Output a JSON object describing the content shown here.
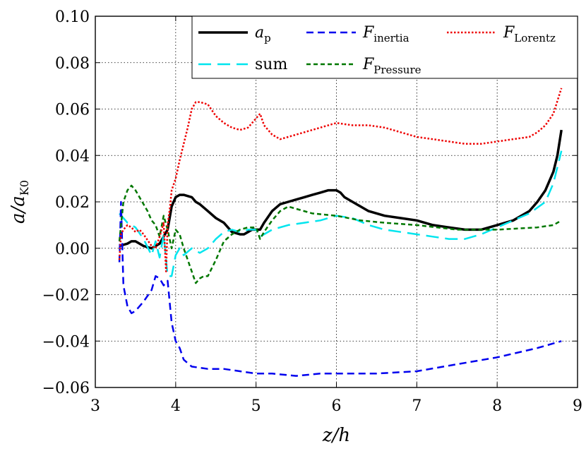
{
  "chart_data": {
    "type": "line",
    "title": "",
    "xlabel": "z/h",
    "ylabel": "a/a_K0",
    "xlim": [
      3,
      9
    ],
    "ylim": [
      -0.06,
      0.1
    ],
    "x_ticks": [
      "3",
      "4",
      "5",
      "6",
      "7",
      "8",
      "9"
    ],
    "y_ticks": [
      "0.10",
      "0.08",
      "0.06",
      "0.04",
      "0.02",
      "0.00",
      "−0.02",
      "−0.04",
      "−0.06"
    ],
    "grid": true,
    "legend_position": "top-right",
    "legend": [
      {
        "label": "a_p",
        "base": "a",
        "sub": "p",
        "sub_italic": true,
        "color": "#000000",
        "dash": "solid"
      },
      {
        "label": "F_inertia",
        "base": "F",
        "sub": "inertia",
        "sub_italic": false,
        "color": "#0000ee",
        "dash": "dashed"
      },
      {
        "label": "F_Lorentz",
        "base": "F",
        "sub": "Lorentz",
        "sub_italic": false,
        "color": "#ee0000",
        "dash": "dotted"
      },
      {
        "label": "sum",
        "base": "sum",
        "sub": "",
        "sub_italic": false,
        "color": "#00e5ee",
        "dash": "long-dashed"
      },
      {
        "label": "F_Pressure",
        "base": "F",
        "sub": "Pressure",
        "sub_italic": false,
        "color": "#007700",
        "dash": "short-dashed"
      }
    ],
    "series": [
      {
        "name": "a_p",
        "color": "#000000",
        "x": [
          3.3,
          3.4,
          3.45,
          3.5,
          3.6,
          3.7,
          3.8,
          3.9,
          3.95,
          4.0,
          4.05,
          4.1,
          4.2,
          4.25,
          4.3,
          4.4,
          4.5,
          4.6,
          4.7,
          4.8,
          4.85,
          4.9,
          4.95,
          5.0,
          5.05,
          5.1,
          5.2,
          5.3,
          5.4,
          5.5,
          5.6,
          5.7,
          5.8,
          5.9,
          6.0,
          6.05,
          6.1,
          6.2,
          6.4,
          6.6,
          6.8,
          7.0,
          7.2,
          7.4,
          7.6,
          7.8,
          8.0,
          8.2,
          8.4,
          8.5,
          8.6,
          8.7,
          8.75,
          8.8
        ],
        "y": [
          0.001,
          0.002,
          0.003,
          0.003,
          0.001,
          0.0,
          0.002,
          0.008,
          0.018,
          0.022,
          0.023,
          0.023,
          0.022,
          0.02,
          0.019,
          0.016,
          0.013,
          0.011,
          0.007,
          0.006,
          0.006,
          0.007,
          0.008,
          0.008,
          0.008,
          0.011,
          0.016,
          0.019,
          0.02,
          0.021,
          0.022,
          0.023,
          0.024,
          0.025,
          0.025,
          0.024,
          0.022,
          0.02,
          0.016,
          0.014,
          0.013,
          0.012,
          0.01,
          0.009,
          0.008,
          0.008,
          0.01,
          0.012,
          0.016,
          0.02,
          0.025,
          0.033,
          0.04,
          0.051
        ]
      },
      {
        "name": "sum",
        "color": "#00e5ee",
        "x": [
          3.3,
          3.35,
          3.4,
          3.5,
          3.6,
          3.7,
          3.75,
          3.8,
          3.85,
          3.9,
          3.95,
          4.0,
          4.05,
          4.1,
          4.2,
          4.3,
          4.4,
          4.5,
          4.6,
          4.7,
          4.8,
          4.9,
          5.0,
          5.05,
          5.1,
          5.2,
          5.4,
          5.6,
          5.8,
          6.0,
          6.2,
          6.4,
          6.6,
          6.8,
          7.0,
          7.2,
          7.4,
          7.6,
          7.8,
          8.0,
          8.2,
          8.4,
          8.6,
          8.7,
          8.8
        ],
        "y": [
          0.015,
          0.013,
          0.011,
          0.009,
          0.004,
          -0.003,
          0.003,
          -0.004,
          0.006,
          -0.012,
          -0.012,
          -0.003,
          0.0,
          -0.003,
          0.0,
          -0.002,
          0.0,
          0.004,
          0.007,
          0.008,
          0.007,
          0.008,
          0.008,
          0.005,
          0.006,
          0.008,
          0.01,
          0.011,
          0.012,
          0.014,
          0.013,
          0.01,
          0.008,
          0.007,
          0.006,
          0.005,
          0.004,
          0.004,
          0.006,
          0.009,
          0.012,
          0.015,
          0.02,
          0.028,
          0.042
        ]
      },
      {
        "name": "F_inertia",
        "color": "#0000ee",
        "x": [
          3.3,
          3.32,
          3.35,
          3.4,
          3.45,
          3.5,
          3.6,
          3.7,
          3.75,
          3.8,
          3.85,
          3.9,
          3.95,
          4.0,
          4.05,
          4.1,
          4.2,
          4.4,
          4.6,
          4.8,
          5.0,
          5.2,
          5.5,
          5.8,
          6.0,
          6.5,
          7.0,
          7.5,
          8.0,
          8.5,
          8.8
        ],
        "y": [
          -0.006,
          0.02,
          -0.016,
          -0.025,
          -0.028,
          -0.027,
          -0.023,
          -0.018,
          -0.012,
          -0.013,
          -0.016,
          -0.014,
          -0.032,
          -0.04,
          -0.043,
          -0.048,
          -0.051,
          -0.052,
          -0.052,
          -0.053,
          -0.054,
          -0.054,
          -0.055,
          -0.054,
          -0.054,
          -0.054,
          -0.053,
          -0.05,
          -0.047,
          -0.043,
          -0.04
        ]
      },
      {
        "name": "F_Pressure",
        "color": "#007700",
        "x": [
          3.3,
          3.35,
          3.4,
          3.45,
          3.5,
          3.6,
          3.65,
          3.7,
          3.75,
          3.8,
          3.85,
          3.9,
          3.95,
          4.0,
          4.05,
          4.1,
          4.15,
          4.2,
          4.25,
          4.3,
          4.35,
          4.4,
          4.5,
          4.6,
          4.7,
          4.8,
          4.9,
          5.0,
          5.05,
          5.1,
          5.2,
          5.3,
          5.4,
          5.5,
          5.7,
          6.0,
          6.3,
          6.6,
          7.0,
          7.5,
          8.0,
          8.5,
          8.7,
          8.8
        ],
        "y": [
          0.003,
          0.02,
          0.025,
          0.027,
          0.025,
          0.019,
          0.016,
          0.012,
          0.01,
          0.005,
          0.014,
          0.008,
          0.0,
          0.008,
          0.006,
          0.0,
          -0.005,
          -0.01,
          -0.015,
          -0.013,
          -0.012,
          -0.012,
          -0.005,
          0.003,
          0.006,
          0.008,
          0.009,
          0.009,
          0.004,
          0.007,
          0.012,
          0.016,
          0.018,
          0.017,
          0.015,
          0.014,
          0.012,
          0.011,
          0.01,
          0.008,
          0.008,
          0.009,
          0.01,
          0.012
        ]
      },
      {
        "name": "F_Lorentz",
        "color": "#ee0000",
        "x": [
          3.3,
          3.32,
          3.35,
          3.4,
          3.45,
          3.5,
          3.55,
          3.6,
          3.7,
          3.75,
          3.8,
          3.85,
          3.88,
          3.9,
          3.93,
          3.95,
          4.0,
          4.05,
          4.1,
          4.15,
          4.2,
          4.25,
          4.3,
          4.4,
          4.5,
          4.6,
          4.7,
          4.8,
          4.9,
          5.0,
          5.05,
          5.1,
          5.2,
          5.3,
          5.4,
          5.5,
          5.6,
          5.8,
          6.0,
          6.2,
          6.4,
          6.6,
          6.8,
          7.0,
          7.2,
          7.4,
          7.6,
          7.8,
          8.0,
          8.2,
          8.4,
          8.5,
          8.6,
          8.7,
          8.8
        ],
        "y": [
          -0.005,
          0.006,
          0.008,
          0.01,
          0.009,
          0.007,
          0.008,
          0.006,
          0.001,
          0.0,
          0.005,
          0.011,
          -0.01,
          0.01,
          0.018,
          0.025,
          0.03,
          0.038,
          0.045,
          0.052,
          0.06,
          0.063,
          0.063,
          0.062,
          0.057,
          0.054,
          0.052,
          0.051,
          0.052,
          0.056,
          0.058,
          0.053,
          0.049,
          0.047,
          0.048,
          0.049,
          0.05,
          0.052,
          0.054,
          0.053,
          0.053,
          0.052,
          0.05,
          0.048,
          0.047,
          0.046,
          0.045,
          0.045,
          0.046,
          0.047,
          0.048,
          0.05,
          0.053,
          0.058,
          0.069
        ]
      }
    ]
  }
}
